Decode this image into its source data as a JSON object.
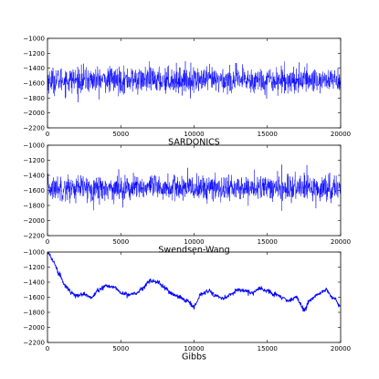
{
  "chart_data": [
    {
      "type": "line",
      "xlabel": "SARDONICS",
      "xlim": [
        0,
        20000
      ],
      "ylim": [
        -2200,
        -1000
      ],
      "x_ticks": [
        0,
        5000,
        10000,
        15000,
        20000
      ],
      "y_ticks": [
        -2200,
        -2000,
        -1800,
        -1600,
        -1400,
        -1200,
        -1000
      ],
      "grid": false,
      "series": [
        {
          "color": "#0000ff",
          "pattern": "rapidly mixing noise",
          "mean": -1560,
          "typical_range": [
            -1720,
            -1380
          ],
          "extremes": [
            -1880,
            -1220
          ],
          "x": [
            0,
            2000,
            4000,
            6000,
            8000,
            10000,
            12000,
            14000,
            16000,
            18000,
            20000
          ],
          "values": [
            -1560,
            -1555,
            -1565,
            -1560,
            -1558,
            -1562,
            -1560,
            -1556,
            -1563,
            -1560,
            -1560
          ]
        }
      ]
    },
    {
      "type": "line",
      "xlabel": "Swendsen-Wang",
      "xlim": [
        0,
        20000
      ],
      "ylim": [
        -2200,
        -1000
      ],
      "x_ticks": [
        0,
        5000,
        10000,
        15000,
        20000
      ],
      "y_ticks": [
        -2200,
        -2000,
        -1800,
        -1600,
        -1400,
        -1200,
        -1000
      ],
      "grid": false,
      "series": [
        {
          "color": "#0000ff",
          "pattern": "rapidly mixing noise",
          "mean": -1570,
          "typical_range": [
            -1730,
            -1400
          ],
          "extremes": [
            -1950,
            -1200
          ],
          "x": [
            0,
            2000,
            4000,
            6000,
            8000,
            10000,
            12000,
            14000,
            16000,
            18000,
            20000
          ],
          "values": [
            -1570,
            -1565,
            -1575,
            -1568,
            -1572,
            -1570,
            -1566,
            -1574,
            -1570,
            -1568,
            -1570
          ]
        }
      ]
    },
    {
      "type": "line",
      "xlabel": "Gibbs",
      "xlim": [
        0,
        20000
      ],
      "ylim": [
        -2200,
        -1000
      ],
      "x_ticks": [
        0,
        5000,
        10000,
        15000,
        20000
      ],
      "y_ticks": [
        -2200,
        -2000,
        -1800,
        -1600,
        -1400,
        -1200,
        -1000
      ],
      "grid": false,
      "series": [
        {
          "color": "#0000ff",
          "pattern": "slowly wandering trace",
          "x": [
            0,
            400,
            800,
            1200,
            1600,
            2000,
            2500,
            3000,
            3500,
            4000,
            4500,
            5000,
            5500,
            6000,
            6500,
            7000,
            7500,
            8000,
            8500,
            9000,
            9500,
            10000,
            10500,
            11000,
            11500,
            12000,
            12500,
            13000,
            13500,
            14000,
            14500,
            15000,
            15500,
            16000,
            16500,
            17000,
            17500,
            18000,
            18500,
            19000,
            19500,
            20000
          ],
          "values": [
            -1000,
            -1120,
            -1300,
            -1440,
            -1540,
            -1580,
            -1560,
            -1600,
            -1500,
            -1450,
            -1460,
            -1540,
            -1570,
            -1550,
            -1480,
            -1380,
            -1400,
            -1480,
            -1550,
            -1600,
            -1650,
            -1720,
            -1560,
            -1520,
            -1580,
            -1620,
            -1560,
            -1500,
            -1520,
            -1540,
            -1480,
            -1520,
            -1560,
            -1600,
            -1650,
            -1600,
            -1760,
            -1620,
            -1560,
            -1500,
            -1600,
            -1720
          ]
        }
      ]
    }
  ]
}
